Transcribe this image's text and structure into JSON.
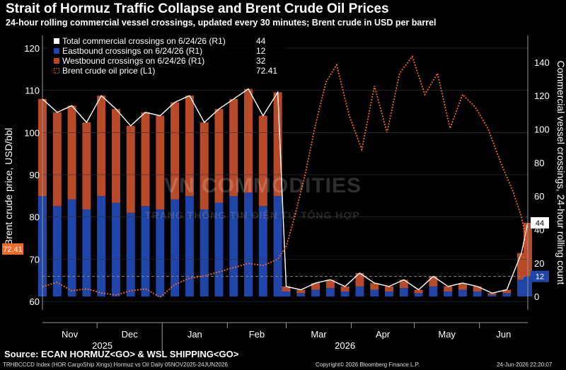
{
  "header": {
    "title": "Strait of Hormuz Traffic Collapse and Brent Crude Oil Prices",
    "subtitle": "24-hour rolling commercial vessel crossings, updated every 30 minutes; Brent crude in USD per barrel"
  },
  "footer": {
    "source": "Source: ECAN HORMUZ<GO> & WSL SHIPPING<GO>",
    "index": "TRHBCCCD Index (HOR CargoShip Xings) Hormuz vs Oil Daily 05NOV2025-24JUN2026",
    "copyright": "Copyright© 2026 Bloomberg Finance L.P.",
    "timestamp": "24-Jun-2026 22:20:07"
  },
  "watermark": {
    "brand": "VN COMMODITIES",
    "tagline": "TRANG THÔNG TIN ĐIỆN TỬ TỔNG HỢP"
  },
  "chart_data": {
    "type": "bar",
    "ylabel_left": "Brent crude price, USD/bbl",
    "ylabel_right": "Commercial vessel crossings, 24-hour rolling count",
    "ylim_left": [
      58,
      123
    ],
    "ylim_right": [
      -8,
      156
    ],
    "yticks_left": [
      "60",
      "70",
      "80",
      "90",
      "100",
      "110",
      "120"
    ],
    "yticks_right": [
      "0",
      "20",
      "40",
      "60",
      "80",
      "100",
      "120",
      "140"
    ],
    "x_months": [
      "Nov",
      "Dec",
      "Jan",
      "Feb",
      "Mar",
      "Apr",
      "May",
      "Jun"
    ],
    "x_years": [
      "2025",
      "2026"
    ],
    "x_range": [
      "2025-11-05",
      "2026-06-24"
    ],
    "legend": [
      {
        "label": "Total commercial crossings on 6/24/26 (R1)",
        "value": "44",
        "color": "#ffffff"
      },
      {
        "label": "Eastbound crossings on 6/24/26 (R1)",
        "value": "12",
        "color": "#1f45a8"
      },
      {
        "label": "Westbound crossings on 6/24/26 (R1)",
        "value": "32",
        "color": "#b84a2a"
      },
      {
        "label": "Brent crude oil price (L1)",
        "value": "72.41",
        "color": "#f06a2a"
      }
    ],
    "last_values": {
      "brent": "72.41",
      "total": "44",
      "eastbound": "12"
    },
    "colors": {
      "eastbound": "#1f45a8",
      "westbound": "#b84a2a",
      "total": "#ffffff",
      "brent": "#f06a2a",
      "background": "#000000"
    },
    "series": [
      {
        "name": "Total commercial crossings on 6/24/26 (R1)",
        "x": [
          "2025-11-05",
          "2025-11-12",
          "2025-11-19",
          "2025-11-26",
          "2025-12-03",
          "2025-12-10",
          "2025-12-17",
          "2025-12-24",
          "2025-12-31",
          "2026-01-07",
          "2026-01-14",
          "2026-01-21",
          "2026-01-28",
          "2026-02-04",
          "2026-02-11",
          "2026-02-18",
          "2026-02-25",
          "2026-03-01",
          "2026-03-08",
          "2026-03-15",
          "2026-03-22",
          "2026-03-29",
          "2026-04-05",
          "2026-04-12",
          "2026-04-19",
          "2026-04-26",
          "2026-05-03",
          "2026-05-10",
          "2026-05-17",
          "2026-05-24",
          "2026-05-31",
          "2026-06-07",
          "2026-06-14",
          "2026-06-21",
          "2026-06-24"
        ],
        "values": [
          118,
          110,
          114,
          104,
          120,
          112,
          102,
          110,
          108,
          116,
          120,
          104,
          112,
          118,
          124,
          108,
          122,
          6,
          4,
          8,
          10,
          6,
          14,
          8,
          6,
          10,
          4,
          12,
          6,
          8,
          6,
          2,
          4,
          26,
          44
        ]
      },
      {
        "name": "Eastbound crossings on 6/24/26 (R1)",
        "x": [
          "2025-11-05",
          "2025-11-12",
          "2025-11-19",
          "2025-11-26",
          "2025-12-03",
          "2025-12-10",
          "2025-12-17",
          "2025-12-24",
          "2025-12-31",
          "2026-01-07",
          "2026-01-14",
          "2026-01-21",
          "2026-01-28",
          "2026-02-04",
          "2026-02-11",
          "2026-02-18",
          "2026-02-25",
          "2026-03-01",
          "2026-03-08",
          "2026-03-15",
          "2026-03-22",
          "2026-03-29",
          "2026-04-05",
          "2026-04-12",
          "2026-04-19",
          "2026-04-26",
          "2026-05-03",
          "2026-05-10",
          "2026-05-17",
          "2026-05-24",
          "2026-05-31",
          "2026-06-07",
          "2026-06-14",
          "2026-06-21",
          "2026-06-24"
        ],
        "values": [
          60,
          54,
          58,
          52,
          60,
          56,
          50,
          54,
          52,
          58,
          60,
          52,
          56,
          60,
          62,
          54,
          60,
          3,
          2,
          4,
          5,
          3,
          6,
          4,
          3,
          5,
          2,
          6,
          3,
          4,
          3,
          1,
          2,
          10,
          12
        ]
      },
      {
        "name": "Westbound crossings on 6/24/26 (R1)",
        "x": [
          "2025-11-05",
          "2025-11-12",
          "2025-11-19",
          "2025-11-26",
          "2025-12-03",
          "2025-12-10",
          "2025-12-17",
          "2025-12-24",
          "2025-12-31",
          "2026-01-07",
          "2026-01-14",
          "2026-01-21",
          "2026-01-28",
          "2026-02-04",
          "2026-02-11",
          "2026-02-18",
          "2026-02-25",
          "2026-03-01",
          "2026-03-08",
          "2026-03-15",
          "2026-03-22",
          "2026-03-29",
          "2026-04-05",
          "2026-04-12",
          "2026-04-19",
          "2026-04-26",
          "2026-05-03",
          "2026-05-10",
          "2026-05-17",
          "2026-05-24",
          "2026-05-31",
          "2026-06-07",
          "2026-06-14",
          "2026-06-21",
          "2026-06-24"
        ],
        "values": [
          58,
          56,
          56,
          52,
          60,
          56,
          52,
          56,
          56,
          58,
          60,
          52,
          56,
          58,
          62,
          54,
          62,
          3,
          2,
          4,
          5,
          3,
          8,
          4,
          3,
          5,
          2,
          6,
          3,
          4,
          3,
          1,
          2,
          16,
          32
        ]
      },
      {
        "name": "Brent crude oil price (L1)",
        "x": [
          "2025-11-05",
          "2025-11-12",
          "2025-11-19",
          "2025-11-26",
          "2025-12-03",
          "2025-12-10",
          "2025-12-17",
          "2025-12-24",
          "2025-12-31",
          "2026-01-07",
          "2026-01-14",
          "2026-01-21",
          "2026-01-28",
          "2026-02-04",
          "2026-02-11",
          "2026-02-18",
          "2026-02-25",
          "2026-03-01",
          "2026-03-05",
          "2026-03-10",
          "2026-03-15",
          "2026-03-20",
          "2026-03-25",
          "2026-03-31",
          "2026-04-06",
          "2026-04-12",
          "2026-04-18",
          "2026-04-24",
          "2026-04-30",
          "2026-05-06",
          "2026-05-12",
          "2026-05-18",
          "2026-05-24",
          "2026-05-30",
          "2026-06-05",
          "2026-06-11",
          "2026-06-17",
          "2026-06-21",
          "2026-06-24"
        ],
        "values": [
          63.5,
          64.5,
          62.5,
          63.0,
          62.0,
          61.5,
          62.5,
          63.0,
          61.0,
          64.0,
          65.5,
          66.0,
          67.0,
          68.0,
          69.0,
          68.5,
          70.0,
          73.0,
          80.0,
          90.0,
          102.0,
          112.0,
          116.0,
          104.0,
          96.0,
          111.0,
          100.0,
          114.0,
          118.0,
          109.0,
          114.0,
          101.0,
          109.0,
          106.0,
          101.0,
          93.0,
          86.0,
          80.0,
          72.41
        ]
      }
    ]
  }
}
